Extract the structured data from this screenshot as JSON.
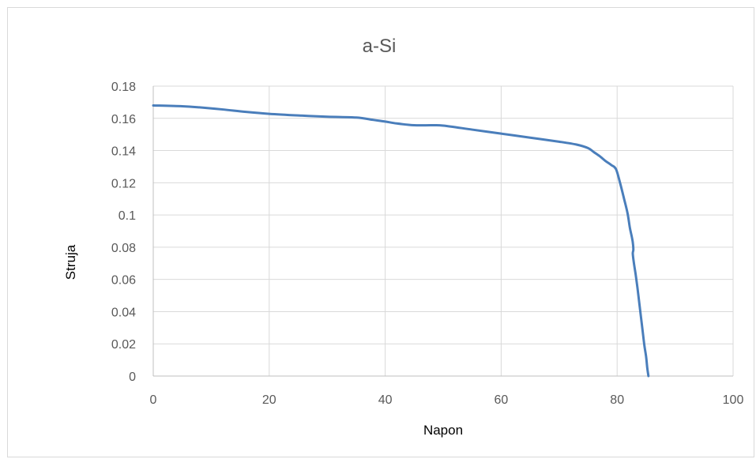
{
  "chart_data": {
    "type": "line",
    "title": "a-Si",
    "xlabel": "Napon",
    "ylabel": "Struja",
    "xlim": [
      0,
      100
    ],
    "ylim": [
      0,
      0.18
    ],
    "x_ticks": [
      "0",
      "20",
      "40",
      "60",
      "80",
      "100"
    ],
    "y_ticks": [
      "0",
      "0.02",
      "0.04",
      "0.06",
      "0.08",
      "0.1",
      "0.12",
      "0.14",
      "0.16",
      "0.18"
    ],
    "grid": true,
    "legend": "none",
    "series": [
      {
        "color": "#4a7ebb",
        "x": [
          0,
          5,
          8,
          12,
          16,
          20,
          25,
          30,
          35,
          38,
          40,
          42,
          45,
          48,
          50,
          55,
          60,
          65,
          70,
          73,
          75,
          76,
          77,
          78,
          79,
          79.8,
          80.5,
          81.2,
          81.8,
          82.2,
          82.5,
          82.7,
          82.8,
          82.7,
          82.9,
          83.2,
          83.5,
          83.8,
          84.1,
          84.4,
          84.7,
          85.0,
          85.2,
          85.4
        ],
        "y": [
          0.168,
          0.1675,
          0.1668,
          0.1655,
          0.164,
          0.1628,
          0.1618,
          0.161,
          0.1605,
          0.159,
          0.158,
          0.1568,
          0.1557,
          0.1557,
          0.1555,
          0.153,
          0.1505,
          0.148,
          0.1455,
          0.1437,
          0.1415,
          0.139,
          0.1365,
          0.1335,
          0.131,
          0.1285,
          0.12,
          0.11,
          0.101,
          0.092,
          0.087,
          0.083,
          0.0785,
          0.076,
          0.07,
          0.063,
          0.055,
          0.046,
          0.037,
          0.028,
          0.019,
          0.012,
          0.005,
          0.0
        ]
      }
    ]
  }
}
